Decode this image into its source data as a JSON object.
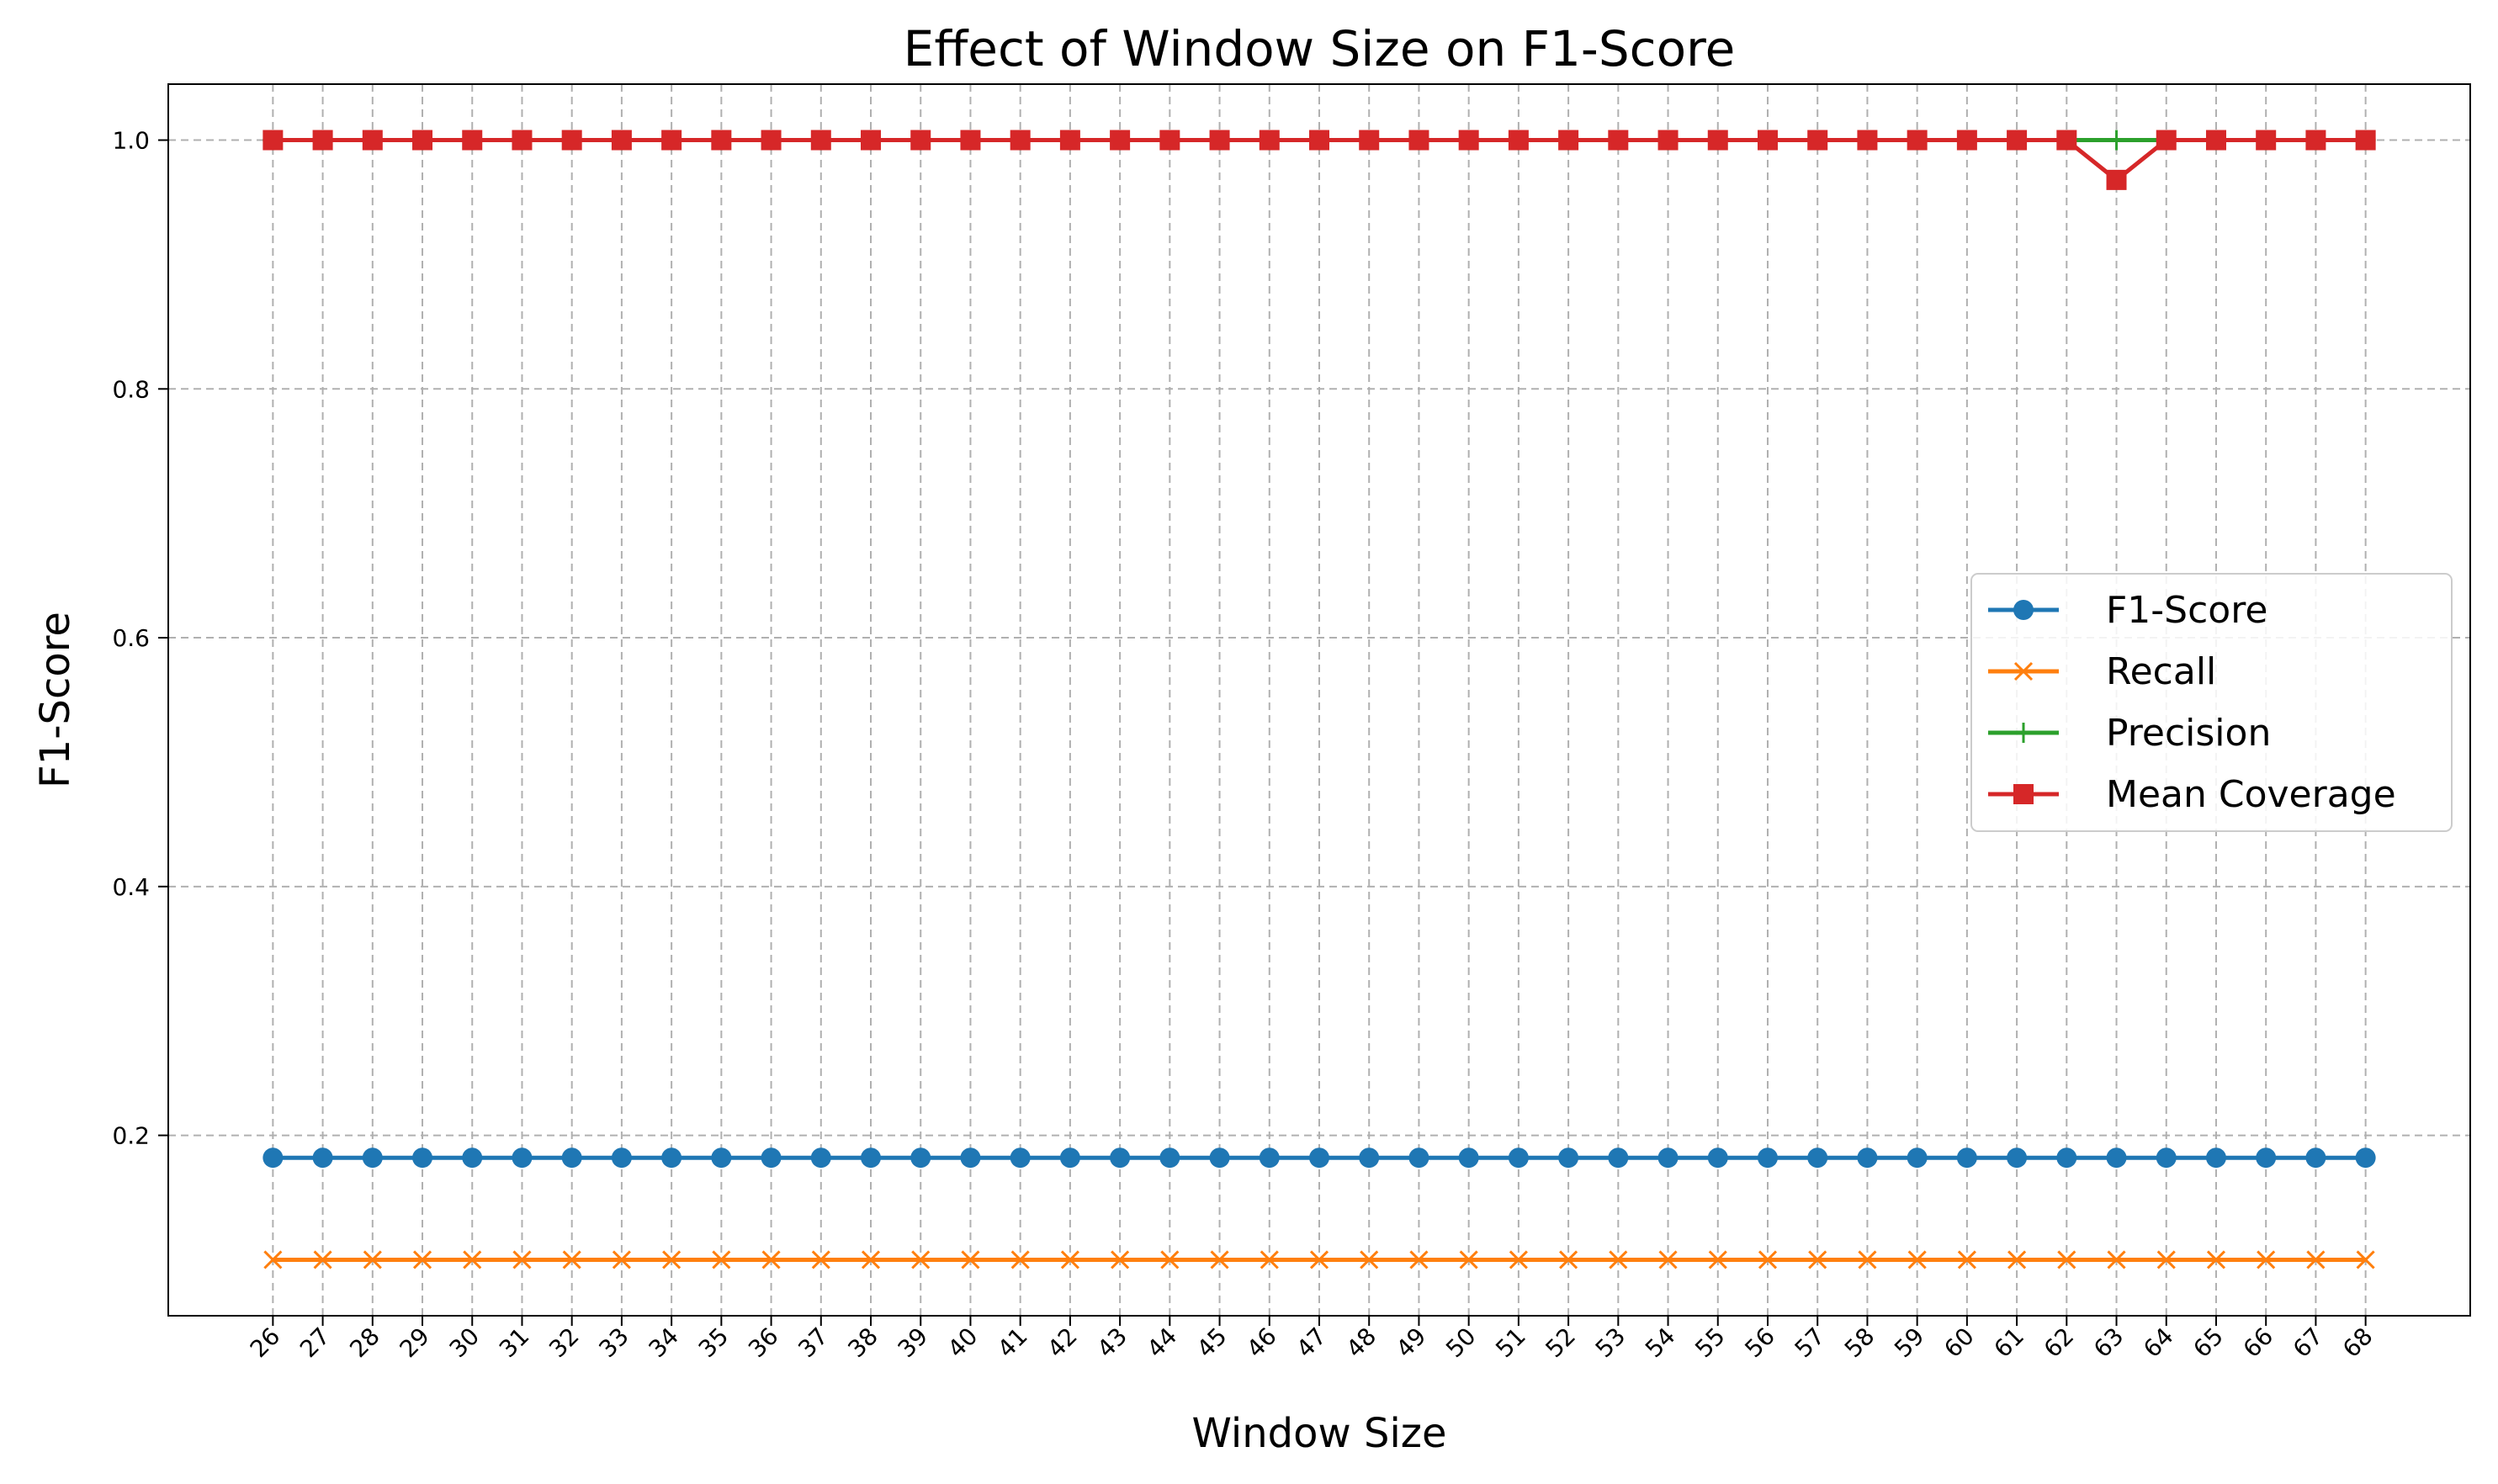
{
  "chart_data": {
    "type": "line",
    "title": "Effect of Window Size on F1-Score",
    "xlabel": "Window Size",
    "ylabel": "F1-Score",
    "x": [
      26,
      27,
      28,
      29,
      30,
      31,
      32,
      33,
      34,
      35,
      36,
      37,
      38,
      39,
      40,
      41,
      42,
      43,
      44,
      45,
      46,
      47,
      48,
      49,
      50,
      51,
      52,
      53,
      54,
      55,
      56,
      57,
      58,
      59,
      60,
      61,
      62,
      63,
      64,
      65,
      66,
      67,
      68
    ],
    "xlim": [
      23.9,
      70.1
    ],
    "ylim": [
      0.055,
      1.045
    ],
    "yticks": [
      0.2,
      0.4,
      0.6,
      0.8,
      1.0
    ],
    "ytick_labels": [
      "0.2",
      "0.4",
      "0.6",
      "0.8",
      "1.0"
    ],
    "grid": true,
    "legend_position": "center-right",
    "series": [
      {
        "name": "F1-Score",
        "color": "#1f77b4",
        "marker": "circle",
        "values": [
          0.182,
          0.182,
          0.182,
          0.182,
          0.182,
          0.182,
          0.182,
          0.182,
          0.182,
          0.182,
          0.182,
          0.182,
          0.182,
          0.182,
          0.182,
          0.182,
          0.182,
          0.182,
          0.182,
          0.182,
          0.182,
          0.182,
          0.182,
          0.182,
          0.182,
          0.182,
          0.182,
          0.182,
          0.182,
          0.182,
          0.182,
          0.182,
          0.182,
          0.182,
          0.182,
          0.182,
          0.182,
          0.182,
          0.182,
          0.182,
          0.182,
          0.182,
          0.182
        ]
      },
      {
        "name": "Recall",
        "color": "#ff7f0e",
        "marker": "x",
        "values": [
          0.1,
          0.1,
          0.1,
          0.1,
          0.1,
          0.1,
          0.1,
          0.1,
          0.1,
          0.1,
          0.1,
          0.1,
          0.1,
          0.1,
          0.1,
          0.1,
          0.1,
          0.1,
          0.1,
          0.1,
          0.1,
          0.1,
          0.1,
          0.1,
          0.1,
          0.1,
          0.1,
          0.1,
          0.1,
          0.1,
          0.1,
          0.1,
          0.1,
          0.1,
          0.1,
          0.1,
          0.1,
          0.1,
          0.1,
          0.1,
          0.1,
          0.1,
          0.1
        ]
      },
      {
        "name": "Precision",
        "color": "#2ca02c",
        "marker": "plus",
        "values": [
          1.0,
          1.0,
          1.0,
          1.0,
          1.0,
          1.0,
          1.0,
          1.0,
          1.0,
          1.0,
          1.0,
          1.0,
          1.0,
          1.0,
          1.0,
          1.0,
          1.0,
          1.0,
          1.0,
          1.0,
          1.0,
          1.0,
          1.0,
          1.0,
          1.0,
          1.0,
          1.0,
          1.0,
          1.0,
          1.0,
          1.0,
          1.0,
          1.0,
          1.0,
          1.0,
          1.0,
          1.0,
          1.0,
          1.0,
          1.0,
          1.0,
          1.0,
          1.0
        ]
      },
      {
        "name": "Mean Coverage",
        "color": "#d62728",
        "marker": "square",
        "values": [
          1.0,
          1.0,
          1.0,
          1.0,
          1.0,
          1.0,
          1.0,
          1.0,
          1.0,
          1.0,
          1.0,
          1.0,
          1.0,
          1.0,
          1.0,
          1.0,
          1.0,
          1.0,
          1.0,
          1.0,
          1.0,
          1.0,
          1.0,
          1.0,
          1.0,
          1.0,
          1.0,
          1.0,
          1.0,
          1.0,
          1.0,
          1.0,
          1.0,
          1.0,
          1.0,
          1.0,
          1.0,
          0.968,
          1.0,
          1.0,
          1.0,
          1.0,
          1.0
        ]
      }
    ]
  }
}
